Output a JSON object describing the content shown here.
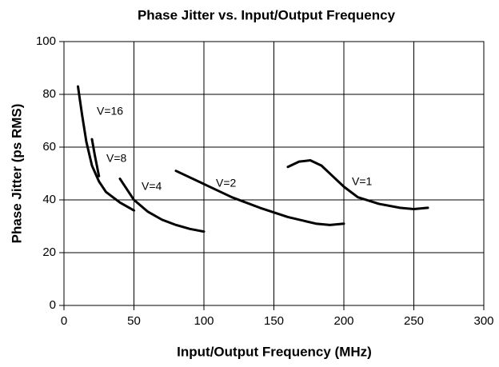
{
  "chart_data": {
    "type": "line",
    "title": "Phase Jitter vs. Input/Output Frequency",
    "x_label": "Input/Output Frequency (MHz)",
    "y_label": "Phase Jitter (ps RMS)",
    "xlim": [
      0,
      300
    ],
    "xticks": [
      0,
      50,
      100,
      150,
      200,
      250,
      300
    ],
    "ylim": [
      0,
      100
    ],
    "yticks": [
      0,
      20,
      40,
      60,
      80,
      100
    ],
    "grid": true,
    "series": [
      {
        "name": "V=16",
        "color": "#000000",
        "x": [
          10,
          13,
          16,
          20,
          25,
          30,
          40,
          50
        ],
        "values": [
          83,
          72,
          62,
          53,
          47,
          43,
          39,
          36
        ]
      },
      {
        "name": "V=8",
        "color": "#000000",
        "x": [
          20,
          22,
          25
        ],
        "values": [
          63,
          57,
          49
        ]
      },
      {
        "name": "V=4",
        "color": "#000000",
        "x": [
          40,
          45,
          50,
          60,
          70,
          80,
          90,
          100
        ],
        "values": [
          48,
          44,
          40,
          35.5,
          32.5,
          30.5,
          29,
          28
        ]
      },
      {
        "name": "V=2",
        "color": "#000000",
        "x": [
          80,
          100,
          120,
          140,
          160,
          180,
          190,
          200
        ],
        "values": [
          51,
          46,
          41,
          37,
          33.5,
          31,
          30.5,
          31
        ]
      },
      {
        "name": "V=1",
        "color": "#000000",
        "x": [
          160,
          168,
          176,
          184,
          192,
          200,
          210,
          225,
          240,
          250,
          260
        ],
        "values": [
          52.5,
          54.5,
          55,
          53,
          49,
          45,
          41,
          38.5,
          37,
          36.5,
          37
        ]
      }
    ]
  }
}
